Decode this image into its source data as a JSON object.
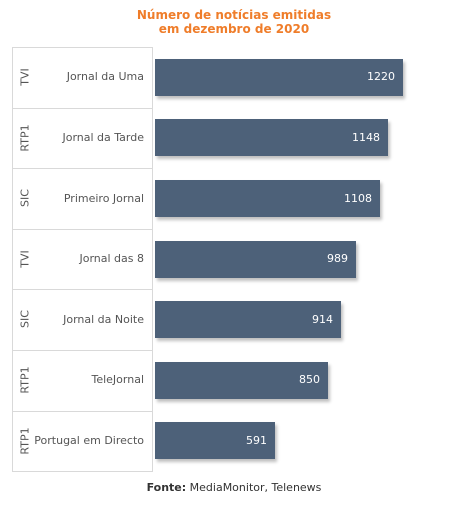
{
  "chart_data": {
    "type": "bar",
    "orientation": "horizontal",
    "title": "Número de notícias emitidas em dezembro de 2020",
    "title_lines": [
      "Número de notícias emitidas",
      "em dezembro de 2020"
    ],
    "categories": [
      "Jornal da Uma",
      "Jornal da Tarde",
      "Primeiro Jornal",
      "Jornal das 8",
      "Jornal da Noite",
      "TeleJornal",
      "Portugal em Directo"
    ],
    "groups": [
      "TVI",
      "RTP1",
      "SIC",
      "TVI",
      "SIC",
      "RTP1",
      "RTP1"
    ],
    "values": [
      1220,
      1148,
      1108,
      989,
      914,
      850,
      591
    ],
    "value_labels": [
      "1220",
      "1148",
      "1108",
      "989",
      "914",
      "850",
      "591"
    ],
    "xlim": [
      0,
      1220
    ],
    "bar_color": "#4d6179",
    "title_color": "#ef7d2a",
    "grid": false
  },
  "source": {
    "label": "Fonte:",
    "text": " MediaMonitor, Telenews"
  }
}
